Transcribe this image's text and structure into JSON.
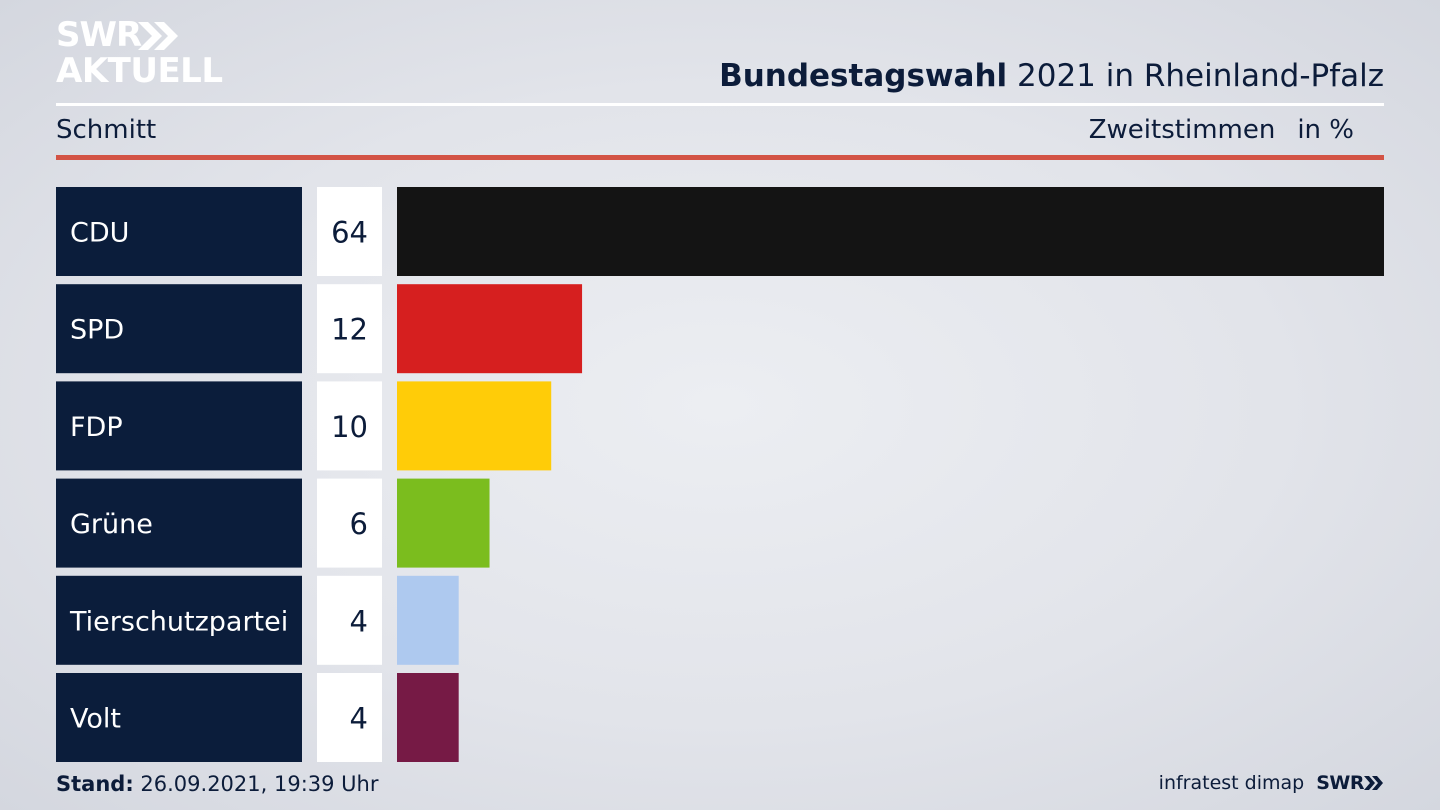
{
  "brand": {
    "logo_line1": "SWR",
    "logo_line2": "AKTUELL",
    "logo_color": "#ffffff"
  },
  "header": {
    "title_bold": "Bundestagswahl",
    "title_rest": " 2021 in Rheinland-Pfalz",
    "subtitle": "Schmitt",
    "measure_label": "Zweitstimmen",
    "unit_label": "in %"
  },
  "colors": {
    "label_box": "#0b1d3b",
    "value_box": "#ffffff",
    "accent_rule": "#d35345"
  },
  "chart_data": {
    "type": "bar",
    "orientation": "horizontal",
    "categories": [
      "CDU",
      "SPD",
      "FDP",
      "Grüne",
      "Tierschutzpartei",
      "Volt"
    ],
    "values": [
      64,
      12,
      10,
      6,
      4,
      4
    ],
    "colors": [
      "#141414",
      "#d61f1f",
      "#ffcc08",
      "#7bbd1e",
      "#aec9ef",
      "#761a45"
    ],
    "value_labels": [
      "64",
      "12",
      "10",
      "6",
      "4",
      "4"
    ],
    "title": "Bundestagswahl 2021 in Rheinland-Pfalz",
    "subtitle": "Schmitt",
    "xlabel": "Zweitstimmen",
    "unit": "in %",
    "xlim": [
      0,
      64
    ],
    "grid": false,
    "legend": "none"
  },
  "footer": {
    "stand_label": "Stand:",
    "stand_value": " 26.09.2021, 19:39 Uhr",
    "source": "infratest dimap",
    "source_brand": "SWR"
  }
}
